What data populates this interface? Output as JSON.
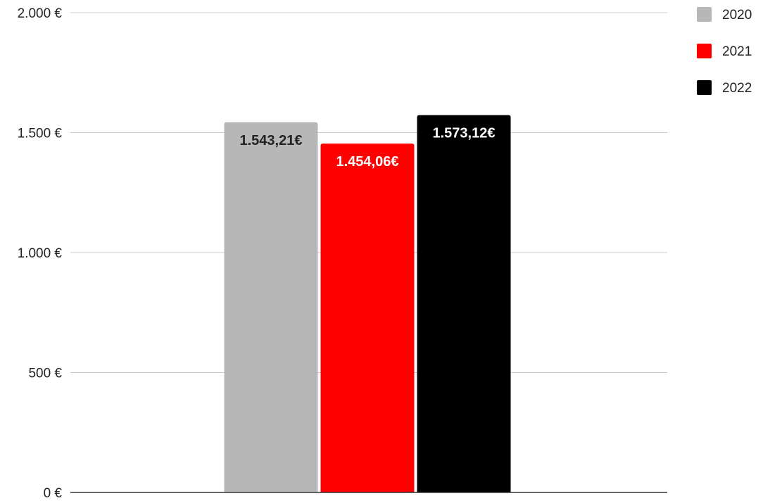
{
  "chart_data": {
    "type": "bar",
    "title": "",
    "xlabel": "",
    "ylabel": "",
    "ylim": [
      0,
      2000
    ],
    "yticks": [
      {
        "value": 0,
        "label": "0 €"
      },
      {
        "value": 500,
        "label": "500 €"
      },
      {
        "value": 1000,
        "label": "1.000 €"
      },
      {
        "value": 1500,
        "label": "1.500 €"
      },
      {
        "value": 2000,
        "label": "2.000 €"
      }
    ],
    "grid": true,
    "legend_position": "top-right",
    "series": [
      {
        "name": "2020",
        "value": 1543.21,
        "label": "1.543,21€",
        "color": "#b7b7b7",
        "label_color": "#222222"
      },
      {
        "name": "2021",
        "value": 1454.06,
        "label": "1.454,06€",
        "color": "#ff0000",
        "label_color": "#ffffff"
      },
      {
        "name": "2022",
        "value": 1573.12,
        "label": "1.573,12€",
        "color": "#000000",
        "label_color": "#ffffff"
      }
    ]
  }
}
